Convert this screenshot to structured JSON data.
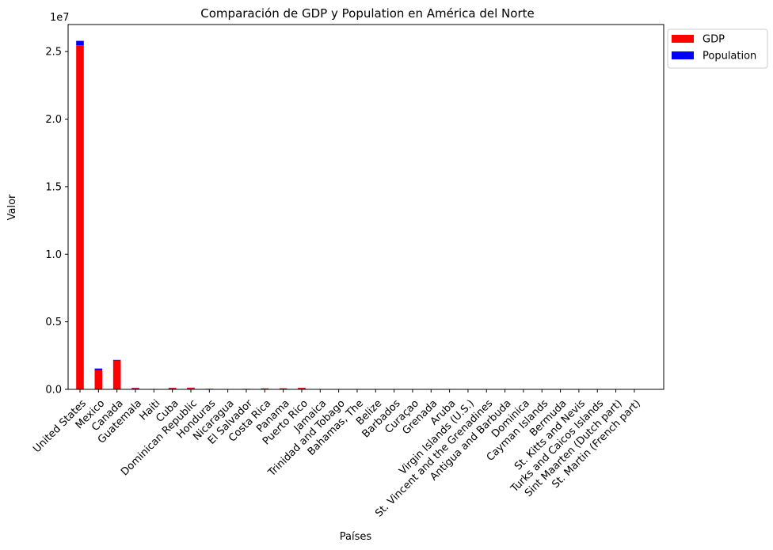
{
  "chart_data": {
    "type": "bar",
    "stacked": true,
    "title": "Comparación de GDP y Population en América del Norte",
    "xlabel": "Países",
    "ylabel": "Valor",
    "y_multiplier_label": "1e7",
    "ylim": [
      0,
      27000000
    ],
    "yticks": [
      0,
      5000000,
      10000000,
      15000000,
      20000000,
      25000000
    ],
    "ytick_labels": [
      "0.0",
      "0.5",
      "1.0",
      "1.5",
      "2.0",
      "2.5"
    ],
    "grid": false,
    "legend_position": "outside-top-right",
    "categories": [
      "United States",
      "Mexico",
      "Canada",
      "Guatemala",
      "Haiti",
      "Cuba",
      "Dominican Republic",
      "Honduras",
      "Nicaragua",
      "El Salvador",
      "Costa Rica",
      "Panama",
      "Puerto Rico",
      "Jamaica",
      "Trinidad and Tobago",
      "Bahamas, The",
      "Belize",
      "Barbados",
      "Curaçao",
      "Grenada",
      "Aruba",
      "Virgin Islands (U.S.)",
      "St. Vincent and the Grenadines",
      "Antigua and Barbuda",
      "Dominica",
      "Cayman Islands",
      "Bermuda",
      "St. Kitts and Nevis",
      "Turks and Caicos Islands",
      "Sint Maarten (Dutch part)",
      "St. Martin (French part)"
    ],
    "series": [
      {
        "name": "GDP",
        "color": "#ff0000",
        "values": [
          25460000,
          1414000,
          2140000,
          95000,
          20000,
          107000,
          114000,
          32000,
          15000,
          32000,
          69000,
          77000,
          113000,
          17000,
          28000,
          13000,
          3000,
          6000,
          3000,
          1000,
          3000,
          4000,
          1000,
          2000,
          1000,
          6000,
          7000,
          1000,
          1500,
          1500,
          700
        ]
      },
      {
        "name": "Population",
        "color": "#0000ff",
        "values": [
          333000,
          127000,
          39000,
          17000,
          11600,
          11200,
          11200,
          10400,
          6900,
          6300,
          5200,
          4400,
          3200,
          2800,
          1500,
          400,
          400,
          280,
          150,
          125,
          106,
          98,
          104,
          94,
          73,
          69,
          64,
          48,
          46,
          44,
          32
        ]
      }
    ]
  }
}
